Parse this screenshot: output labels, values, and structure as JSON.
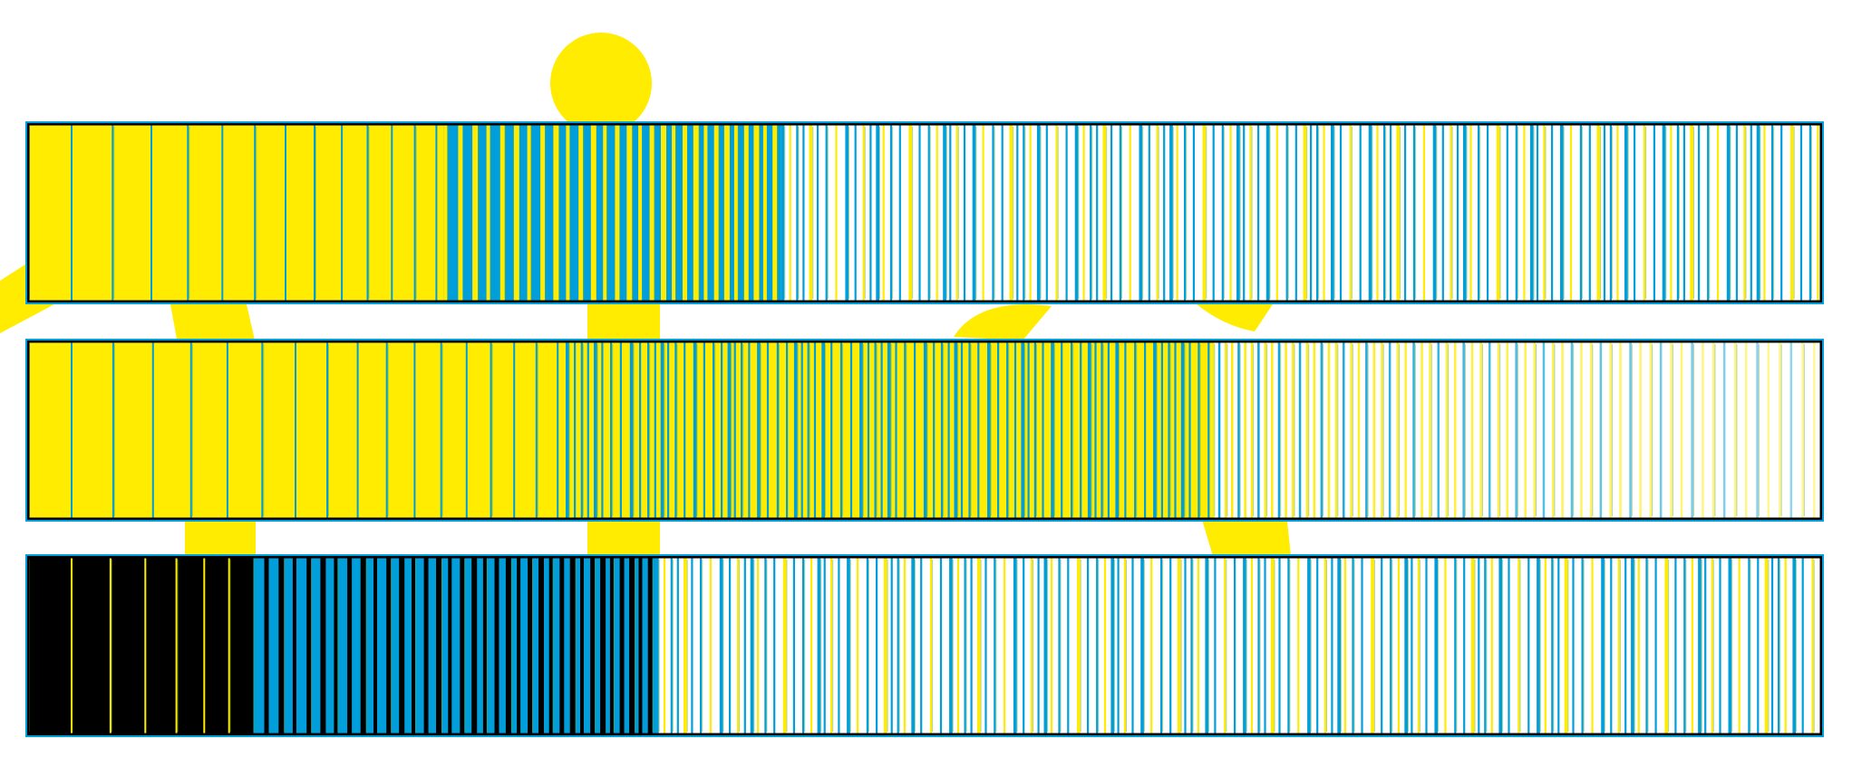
{
  "palette": {
    "yellow": "#FFEC00",
    "blue": "#009FDB",
    "black": "#000000",
    "white": "#FFFFFF",
    "green": "#5BAA3A"
  },
  "strips": [
    {
      "id": "top-strip",
      "base": "yellow",
      "segments": [
        {
          "from": 0.0,
          "to": 0.232,
          "mode": "sparse",
          "fg": "blue",
          "bg": "yellow"
        },
        {
          "from": 0.232,
          "to": 0.42,
          "mode": "dense",
          "fg": "yellow",
          "bg": "blue"
        },
        {
          "from": 0.42,
          "to": 1.0,
          "mode": "fine",
          "fg": "blue",
          "bg": "white",
          "alt": "yellow"
        }
      ]
    },
    {
      "id": "middle-strip",
      "base": "yellow",
      "segments": [
        {
          "from": 0.0,
          "to": 0.3,
          "mode": "sparse",
          "fg": "blue",
          "bg": "yellow"
        },
        {
          "from": 0.3,
          "to": 0.66,
          "mode": "fine",
          "fg": "blue",
          "bg": "yellow",
          "alt": "blue"
        },
        {
          "from": 0.66,
          "to": 1.0,
          "mode": "fade",
          "fg": "yellow",
          "bg": "white",
          "alt": "blue"
        }
      ]
    },
    {
      "id": "bottom-strip",
      "base": "black",
      "segments": [
        {
          "from": 0.0,
          "to": 0.124,
          "mode": "sparse",
          "fg": "yellow",
          "bg": "black"
        },
        {
          "from": 0.124,
          "to": 0.35,
          "mode": "dense",
          "fg": "black",
          "bg": "blue"
        },
        {
          "from": 0.35,
          "to": 1.0,
          "mode": "fine",
          "fg": "blue",
          "bg": "white",
          "alt": "yellow"
        }
      ]
    }
  ],
  "background_shapes": [
    {
      "id": "sun-circle",
      "kind": "circle",
      "color": "yellow"
    },
    {
      "id": "arc-left-edge",
      "kind": "wedge",
      "color": "yellow"
    },
    {
      "id": "arc-gap1-a",
      "kind": "arc",
      "color": "yellow"
    },
    {
      "id": "arc-gap1-b",
      "kind": "block",
      "color": "yellow"
    },
    {
      "id": "arc-gap1-c",
      "kind": "arc",
      "color": "yellow"
    },
    {
      "id": "arc-gap1-d",
      "kind": "arc",
      "color": "yellow"
    },
    {
      "id": "arc-gap2-a",
      "kind": "block",
      "color": "yellow"
    },
    {
      "id": "arc-gap2-b",
      "kind": "block",
      "color": "yellow"
    },
    {
      "id": "arc-gap2-c",
      "kind": "arc",
      "color": "yellow"
    }
  ]
}
